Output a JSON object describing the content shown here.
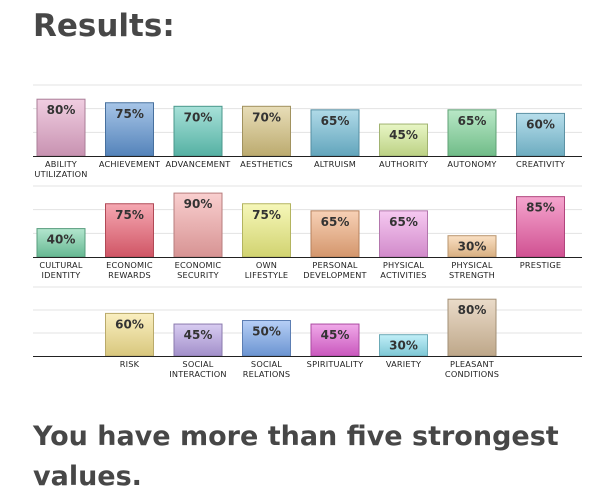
{
  "heading": "Results:",
  "conclusion": "You have more than five strongest values.",
  "chart_data": [
    {
      "type": "bar",
      "unit": "%",
      "ylim": [
        0,
        100
      ],
      "grid": true,
      "categories": [
        "ABILITY UTILIZATION",
        "ACHIEVEMENT",
        "ADVANCEMENT",
        "AESTHETICS",
        "ALTRUISM",
        "AUTHORITY",
        "AUTONOMY",
        "CREATIVITY"
      ],
      "label_lines": [
        [
          "ABILITY",
          "UTILIZATION"
        ],
        [
          "ACHIEVEMENT"
        ],
        [
          "ADVANCEMENT"
        ],
        [
          "AESTHETICS"
        ],
        [
          "ALTRUISM"
        ],
        [
          "AUTHORITY"
        ],
        [
          "AUTONOMY"
        ],
        [
          "CREATIVITY"
        ]
      ],
      "values": [
        80,
        75,
        70,
        70,
        65,
        45,
        65,
        60
      ],
      "value_labels": [
        "80%",
        "75%",
        "70%",
        "70%",
        "65%",
        "45%",
        "65%",
        "60%"
      ],
      "colors": [
        "#e3a6c9",
        "#5f95d3",
        "#61c9b9",
        "#d6c27e",
        "#6fbcd6",
        "#d6ee96",
        "#7fd69a",
        "#7cc3da"
      ],
      "slots": [
        0,
        1,
        2,
        3,
        4,
        5,
        6,
        7
      ]
    },
    {
      "type": "bar",
      "unit": "%",
      "ylim": [
        0,
        100
      ],
      "grid": true,
      "categories": [
        "CULTURAL IDENTITY",
        "ECONOMIC REWARDS",
        "ECONOMIC SECURITY",
        "OWN LIFESTYLE",
        "PERSONAL DEVELOPMENT",
        "PHYSICAL ACTIVITIES",
        "PHYSICAL STRENGTH",
        "PRESTIGE"
      ],
      "label_lines": [
        [
          "CULTURAL",
          "IDENTITY"
        ],
        [
          "ECONOMIC",
          "REWARDS"
        ],
        [
          "ECONOMIC",
          "SECURITY"
        ],
        [
          "OWN",
          "LIFESTYLE"
        ],
        [
          "PERSONAL",
          "DEVELOPMENT"
        ],
        [
          "PHYSICAL",
          "ACTIVITIES"
        ],
        [
          "PHYSICAL",
          "STRENGTH"
        ],
        [
          "PRESTIGE"
        ]
      ],
      "values": [
        40,
        75,
        90,
        75,
        65,
        65,
        30,
        85
      ],
      "value_labels": [
        "40%",
        "75%",
        "90%",
        "75%",
        "65%",
        "65%",
        "30%",
        "85%"
      ],
      "colors": [
        "#74d1a6",
        "#ec6173",
        "#f4a7a7",
        "#eef07f",
        "#f1ab7b",
        "#ee9de6",
        "#f6c793",
        "#ec5ca6"
      ],
      "slots": [
        0,
        1,
        2,
        3,
        4,
        5,
        6,
        7
      ]
    },
    {
      "type": "bar",
      "unit": "%",
      "ylim": [
        0,
        100
      ],
      "grid": true,
      "categories": [
        "RISK",
        "SOCIAL INTERACTION",
        "SOCIAL RELATIONS",
        "SPIRITUALITY",
        "VARIETY",
        "PLEASANT CONDITIONS"
      ],
      "label_lines": [
        [
          "RISK"
        ],
        [
          "SOCIAL",
          "INTERACTION"
        ],
        [
          "SOCIAL",
          "RELATIONS"
        ],
        [
          "SPIRITUALITY"
        ],
        [
          "VARIETY"
        ],
        [
          "PLEASANT",
          "CONDITIONS"
        ]
      ],
      "values": [
        60,
        45,
        50,
        45,
        30,
        80
      ],
      "value_labels": [
        "60%",
        "45%",
        "50%",
        "45%",
        "30%",
        "80%"
      ],
      "colors": [
        "#f6e28e",
        "#b8a2e6",
        "#7aa8ee",
        "#e463d7",
        "#8ee2f2",
        "#d8be9c"
      ],
      "slots": [
        1,
        2,
        3,
        4,
        5,
        6
      ]
    }
  ]
}
